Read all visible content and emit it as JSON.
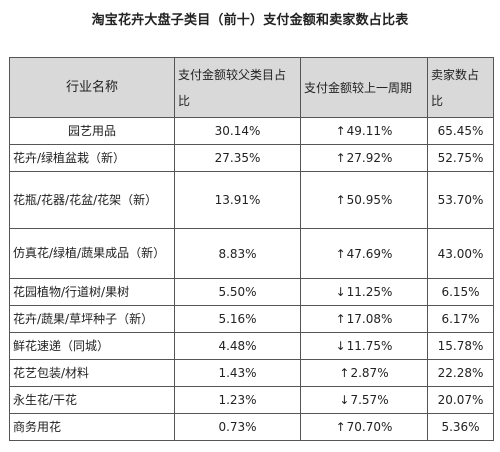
{
  "title": "淘宝花卉大盘子类目（前十）支付金额和卖家数占比表",
  "headers": {
    "name": "行业名称",
    "pay_share": "支付金额较父类目占比",
    "pay_change": "支付金额较上一周期",
    "seller_share": "卖家数占比"
  },
  "rows": [
    {
      "name": "园艺用品",
      "pay_share": "30.14%",
      "dir": "up",
      "pay_change": "49.11%",
      "seller_share": "65.45%"
    },
    {
      "name": "花卉/绿植盆栽（新）",
      "pay_share": "27.35%",
      "dir": "up",
      "pay_change": "27.92%",
      "seller_share": "52.75%"
    },
    {
      "name": "花瓶/花器/花盆/花架（新）",
      "pay_share": "13.91%",
      "dir": "up",
      "pay_change": "50.95%",
      "seller_share": "53.70%"
    },
    {
      "name": "仿真花/绿植/蔬果成品（新）",
      "pay_share": "8.83%",
      "dir": "up",
      "pay_change": "47.69%",
      "seller_share": "43.00%"
    },
    {
      "name": "花园植物/行道树/果树",
      "pay_share": "5.50%",
      "dir": "down",
      "pay_change": "11.25%",
      "seller_share": "6.15%"
    },
    {
      "name": "花卉/蔬果/草坪种子（新）",
      "pay_share": "5.16%",
      "dir": "up",
      "pay_change": "17.08%",
      "seller_share": "6.17%"
    },
    {
      "name": "鲜花速递（同城）",
      "pay_share": "4.48%",
      "dir": "down",
      "pay_change": "11.75%",
      "seller_share": "15.78%"
    },
    {
      "name": "花艺包装/材料",
      "pay_share": "1.43%",
      "dir": "up",
      "pay_change": "2.87%",
      "seller_share": "22.28%"
    },
    {
      "name": "永生花/干花",
      "pay_share": "1.23%",
      "dir": "down",
      "pay_change": "7.57%",
      "seller_share": "20.07%"
    },
    {
      "name": "商务用花",
      "pay_share": "0.73%",
      "dir": "up",
      "pay_change": "70.70%",
      "seller_share": "5.36%"
    }
  ],
  "arrows": {
    "up": "↑",
    "down": "↓"
  }
}
